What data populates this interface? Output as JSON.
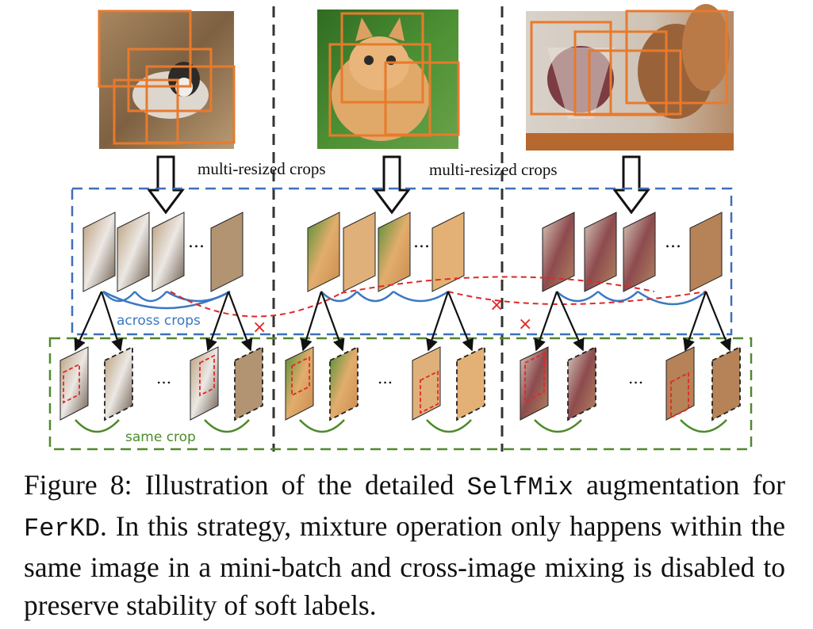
{
  "diagram": {
    "crop_label_left": "multi-resized crops",
    "crop_label_right": "multi-resized crops",
    "across_label": "across crops",
    "same_label": "same crop",
    "ellipsis": "...",
    "cross_mark": "×",
    "source_images": [
      {
        "name": "husky",
        "colors": [
          "#9b7b56",
          "#7d6040",
          "#b79b74"
        ]
      },
      {
        "name": "kitten",
        "colors": [
          "#3f7d2a",
          "#d49a55",
          "#5a9a3a"
        ]
      },
      {
        "name": "squirrel",
        "colors": [
          "#d8cfc6",
          "#8c5a34",
          "#c99d78"
        ]
      }
    ],
    "colors": {
      "box": "#e87a2c",
      "blue_dash": "#3f6fb8",
      "green_dash": "#4f8a2b",
      "red": "#e02828",
      "arc_blue": "#3a78c2",
      "arc_green": "#4d8a2b",
      "divider": "#333333"
    }
  },
  "caption": {
    "prefix": "Figure 8: Illustration of the detailed ",
    "code1": "SelfMix",
    "mid1": " augmentation for ",
    "code2": "FerKD",
    "rest": ". In this strategy, mixture operation only happens within the same image in a mini-batch and cross-image mixing is disabled to preserve stability of soft labels."
  }
}
